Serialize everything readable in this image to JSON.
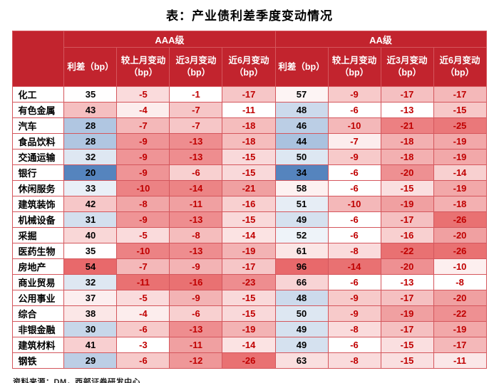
{
  "source_note": "资料来源：DM，西部证券研发中心",
  "colors": {
    "header_bg": "#c2242e",
    "border": "#d4565c",
    "negative_text": "#c00000",
    "heat_red": "#e8696b",
    "heat_blue": "#5584be"
  },
  "chart_data": {
    "type": "table",
    "title": "表：产业债利差季度变动情况",
    "group_headers": [
      "AAA级",
      "AA级"
    ],
    "sub_headers": [
      "利差（bp）",
      "较上月变动（bp）",
      "近3月变动（bp）",
      "近6月变动（bp）"
    ],
    "rows": [
      {
        "industry": "化工",
        "values": [
          35,
          -5,
          -1,
          -17,
          57,
          -9,
          -17,
          -17
        ]
      },
      {
        "industry": "有色金属",
        "values": [
          43,
          -4,
          -7,
          -11,
          48,
          -6,
          -13,
          -15
        ]
      },
      {
        "industry": "汽车",
        "values": [
          28,
          -7,
          -7,
          -18,
          46,
          -10,
          -21,
          -25
        ]
      },
      {
        "industry": "食品饮料",
        "values": [
          28,
          -9,
          -13,
          -18,
          44,
          -7,
          -18,
          -19
        ]
      },
      {
        "industry": "交通运输",
        "values": [
          32,
          -9,
          -13,
          -15,
          50,
          -9,
          -18,
          -19
        ]
      },
      {
        "industry": "银行",
        "values": [
          20,
          -9,
          -6,
          -15,
          34,
          -6,
          -20,
          -14
        ]
      },
      {
        "industry": "休闲服务",
        "values": [
          33,
          -10,
          -14,
          -21,
          58,
          -6,
          -15,
          -19
        ]
      },
      {
        "industry": "建筑装饰",
        "values": [
          42,
          -8,
          -11,
          -16,
          51,
          -10,
          -19,
          -18
        ]
      },
      {
        "industry": "机械设备",
        "values": [
          31,
          -9,
          -13,
          -15,
          49,
          -6,
          -17,
          -26
        ]
      },
      {
        "industry": "采掘",
        "values": [
          40,
          -5,
          -8,
          -14,
          52,
          -6,
          -16,
          -20
        ]
      },
      {
        "industry": "医药生物",
        "values": [
          35,
          -10,
          -13,
          -19,
          61,
          -8,
          -22,
          -26
        ]
      },
      {
        "industry": "房地产",
        "values": [
          54,
          -7,
          -9,
          -17,
          96,
          -14,
          -20,
          -10
        ]
      },
      {
        "industry": "商业贸易",
        "values": [
          32,
          -11,
          -16,
          -23,
          66,
          -6,
          -13,
          -8
        ]
      },
      {
        "industry": "公用事业",
        "values": [
          37,
          -5,
          -9,
          -15,
          48,
          -9,
          -17,
          -20
        ]
      },
      {
        "industry": "综合",
        "values": [
          38,
          -4,
          -6,
          -15,
          50,
          -9,
          -19,
          -22
        ]
      },
      {
        "industry": "非银金融",
        "values": [
          30,
          -6,
          -13,
          -19,
          49,
          -8,
          -17,
          -19
        ]
      },
      {
        "industry": "建筑材料",
        "values": [
          41,
          -3,
          -11,
          -14,
          49,
          -6,
          -15,
          -17
        ]
      },
      {
        "industry": "钢铁",
        "values": [
          29,
          -6,
          -12,
          -26,
          63,
          -8,
          -15,
          -11
        ]
      }
    ]
  }
}
